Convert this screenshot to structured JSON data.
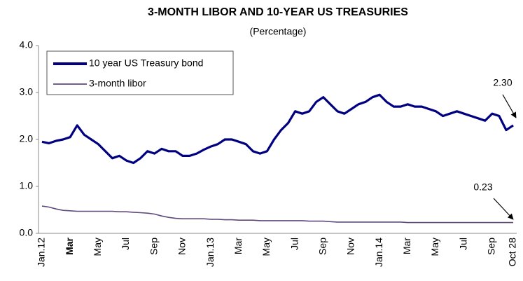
{
  "chart_data": {
    "type": "line",
    "title": "3-MONTH LIBOR AND 10-YEAR  US TREASURIES",
    "subtitle": "(Percentage)",
    "categories": [
      "Jan.12",
      null,
      null,
      null,
      "Mar",
      null,
      null,
      null,
      "May",
      null,
      null,
      null,
      "Jul",
      null,
      null,
      null,
      "Sep",
      null,
      null,
      null,
      "Nov",
      null,
      null,
      null,
      "Jan.13",
      null,
      null,
      null,
      "Mar",
      null,
      null,
      null,
      "May",
      null,
      null,
      null,
      "Jul",
      null,
      null,
      null,
      "Sep",
      null,
      null,
      null,
      "Nov",
      null,
      null,
      null,
      "Jan.14",
      null,
      null,
      null,
      "Mar",
      null,
      null,
      null,
      "May",
      null,
      null,
      null,
      "Jul",
      null,
      null,
      null,
      "Sep",
      null,
      null,
      "Oct 28"
    ],
    "series": [
      {
        "name": "10 year US Treasury bond",
        "color": "#000080",
        "values": [
          1.95,
          1.92,
          1.97,
          2.0,
          2.05,
          2.3,
          2.1,
          2.0,
          1.9,
          1.75,
          1.6,
          1.65,
          1.55,
          1.5,
          1.6,
          1.75,
          1.7,
          1.8,
          1.75,
          1.75,
          1.65,
          1.65,
          1.7,
          1.78,
          1.85,
          1.9,
          2.0,
          2.0,
          1.95,
          1.9,
          1.75,
          1.7,
          1.75,
          2.0,
          2.2,
          2.35,
          2.6,
          2.55,
          2.6,
          2.8,
          2.9,
          2.75,
          2.6,
          2.55,
          2.65,
          2.75,
          2.8,
          2.9,
          2.95,
          2.8,
          2.7,
          2.7,
          2.75,
          2.7,
          2.7,
          2.65,
          2.6,
          2.5,
          2.55,
          2.6,
          2.55,
          2.5,
          2.45,
          2.4,
          2.55,
          2.5,
          2.2,
          2.3
        ]
      },
      {
        "name": "3-month libor",
        "color": "#604a7b",
        "values": [
          0.58,
          0.56,
          0.52,
          0.49,
          0.48,
          0.47,
          0.47,
          0.47,
          0.47,
          0.47,
          0.47,
          0.46,
          0.46,
          0.45,
          0.44,
          0.43,
          0.41,
          0.37,
          0.34,
          0.32,
          0.31,
          0.31,
          0.31,
          0.31,
          0.3,
          0.3,
          0.29,
          0.29,
          0.28,
          0.28,
          0.28,
          0.27,
          0.27,
          0.27,
          0.27,
          0.27,
          0.27,
          0.27,
          0.26,
          0.26,
          0.26,
          0.25,
          0.24,
          0.24,
          0.24,
          0.24,
          0.24,
          0.24,
          0.24,
          0.24,
          0.24,
          0.24,
          0.23,
          0.23,
          0.23,
          0.23,
          0.23,
          0.23,
          0.23,
          0.23,
          0.23,
          0.23,
          0.23,
          0.23,
          0.23,
          0.23,
          0.23,
          0.23
        ]
      }
    ],
    "ylim": [
      0,
      4
    ],
    "yticks": [
      {
        "value": 0,
        "label": "0.0"
      },
      {
        "value": 1,
        "label": "1.0"
      },
      {
        "value": 2,
        "label": "2.0"
      },
      {
        "value": 3,
        "label": "3.0"
      },
      {
        "value": 4,
        "label": "4.0"
      }
    ],
    "annotations": [
      "2.30",
      "0.23"
    ],
    "legend": "top-left"
  }
}
